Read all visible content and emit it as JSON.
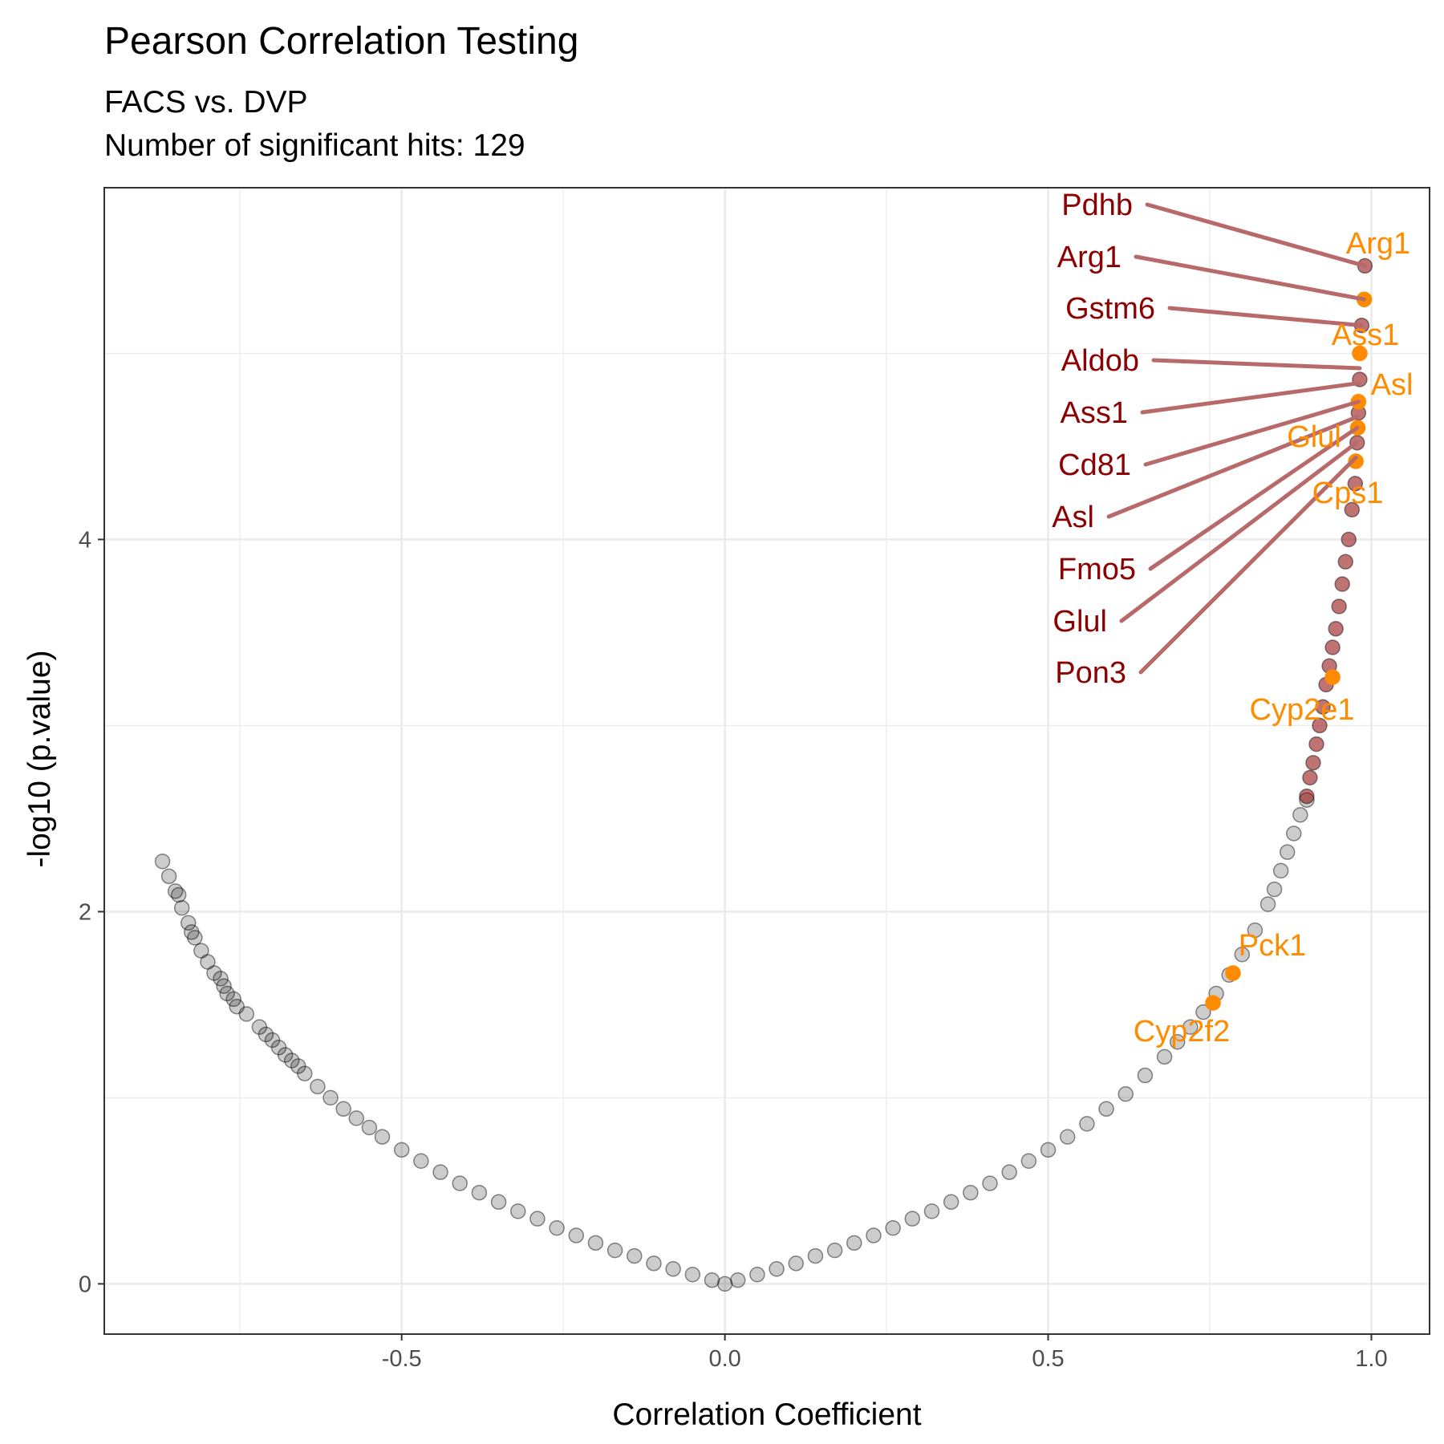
{
  "chart_data": {
    "type": "scatter",
    "title": "Pearson Correlation Testing",
    "subtitle": [
      "FACS vs. DVP",
      "Number of significant hits: 129"
    ],
    "xlabel": "Correlation Coefficient",
    "ylabel": "-log10 (p.value)",
    "xlim": [
      -0.96,
      1.09
    ],
    "ylim": [
      -0.27,
      5.89
    ],
    "xticks": [
      -0.5,
      0.0,
      0.5,
      1.0
    ],
    "xtick_labels": [
      "-0.5",
      "0.0",
      "0.5",
      "1.0"
    ],
    "yticks": [
      0,
      2,
      4
    ],
    "ytick_labels": [
      "0",
      "2",
      "4"
    ],
    "grid": true,
    "legend": "none",
    "series": [
      {
        "role": "non-significant",
        "color": "#000000",
        "points": [
          [
            -0.87,
            2.27
          ],
          [
            -0.86,
            2.19
          ],
          [
            -0.85,
            2.11
          ],
          [
            -0.845,
            2.09
          ],
          [
            -0.84,
            2.02
          ],
          [
            -0.83,
            1.94
          ],
          [
            -0.825,
            1.89
          ],
          [
            -0.82,
            1.86
          ],
          [
            -0.81,
            1.79
          ],
          [
            -0.8,
            1.73
          ],
          [
            -0.79,
            1.67
          ],
          [
            -0.78,
            1.64
          ],
          [
            -0.775,
            1.6
          ],
          [
            -0.77,
            1.56
          ],
          [
            -0.76,
            1.53
          ],
          [
            -0.755,
            1.49
          ],
          [
            -0.74,
            1.45
          ],
          [
            -0.72,
            1.38
          ],
          [
            -0.71,
            1.34
          ],
          [
            -0.7,
            1.31
          ],
          [
            -0.69,
            1.27
          ],
          [
            -0.68,
            1.23
          ],
          [
            -0.67,
            1.2
          ],
          [
            -0.66,
            1.17
          ],
          [
            -0.65,
            1.13
          ],
          [
            -0.63,
            1.06
          ],
          [
            -0.61,
            1.0
          ],
          [
            -0.59,
            0.94
          ],
          [
            -0.57,
            0.89
          ],
          [
            -0.55,
            0.84
          ],
          [
            -0.53,
            0.79
          ],
          [
            -0.5,
            0.72
          ],
          [
            -0.47,
            0.66
          ],
          [
            -0.44,
            0.6
          ],
          [
            -0.41,
            0.54
          ],
          [
            -0.38,
            0.49
          ],
          [
            -0.35,
            0.44
          ],
          [
            -0.32,
            0.39
          ],
          [
            -0.29,
            0.35
          ],
          [
            -0.26,
            0.3
          ],
          [
            -0.23,
            0.26
          ],
          [
            -0.2,
            0.22
          ],
          [
            -0.17,
            0.18
          ],
          [
            -0.14,
            0.15
          ],
          [
            -0.11,
            0.11
          ],
          [
            -0.08,
            0.08
          ],
          [
            -0.05,
            0.05
          ],
          [
            -0.02,
            0.02
          ],
          [
            0.0,
            0.0
          ],
          [
            0.02,
            0.02
          ],
          [
            0.05,
            0.05
          ],
          [
            0.08,
            0.08
          ],
          [
            0.11,
            0.11
          ],
          [
            0.14,
            0.15
          ],
          [
            0.17,
            0.18
          ],
          [
            0.2,
            0.22
          ],
          [
            0.23,
            0.26
          ],
          [
            0.26,
            0.3
          ],
          [
            0.29,
            0.35
          ],
          [
            0.32,
            0.39
          ],
          [
            0.35,
            0.44
          ],
          [
            0.38,
            0.49
          ],
          [
            0.41,
            0.54
          ],
          [
            0.44,
            0.6
          ],
          [
            0.47,
            0.66
          ],
          [
            0.5,
            0.72
          ],
          [
            0.53,
            0.79
          ],
          [
            0.56,
            0.86
          ],
          [
            0.59,
            0.94
          ],
          [
            0.62,
            1.02
          ],
          [
            0.65,
            1.12
          ],
          [
            0.68,
            1.22
          ],
          [
            0.7,
            1.3
          ],
          [
            0.72,
            1.38
          ],
          [
            0.74,
            1.46
          ],
          [
            0.76,
            1.56
          ],
          [
            0.78,
            1.66
          ],
          [
            0.8,
            1.77
          ],
          [
            0.82,
            1.9
          ],
          [
            0.84,
            2.04
          ],
          [
            0.85,
            2.12
          ],
          [
            0.86,
            2.22
          ],
          [
            0.87,
            2.32
          ],
          [
            0.88,
            2.42
          ],
          [
            0.89,
            2.52
          ],
          [
            0.9,
            2.6
          ]
        ]
      },
      {
        "role": "significant",
        "color": "#8b0000",
        "points": [
          [
            0.9,
            2.62
          ],
          [
            0.905,
            2.72
          ],
          [
            0.91,
            2.8
          ],
          [
            0.915,
            2.9
          ],
          [
            0.92,
            3.0
          ],
          [
            0.925,
            3.1
          ],
          [
            0.93,
            3.22
          ],
          [
            0.935,
            3.32
          ],
          [
            0.94,
            3.42
          ],
          [
            0.945,
            3.52
          ],
          [
            0.95,
            3.64
          ],
          [
            0.955,
            3.76
          ],
          [
            0.96,
            3.88
          ],
          [
            0.965,
            4.0
          ],
          [
            0.97,
            4.16
          ],
          [
            0.975,
            4.3
          ],
          [
            0.978,
            4.52
          ],
          [
            0.98,
            4.68
          ],
          [
            0.982,
            4.86
          ],
          [
            0.985,
            5.15
          ],
          [
            0.99,
            5.47
          ]
        ]
      },
      {
        "role": "highlighted",
        "color": "#ff8c00",
        "points": [
          [
            0.989,
            5.29
          ],
          [
            0.982,
            5.0
          ],
          [
            0.98,
            4.74
          ],
          [
            0.979,
            4.6
          ],
          [
            0.976,
            4.42
          ],
          [
            0.94,
            3.26
          ],
          [
            0.786,
            1.67
          ],
          [
            0.755,
            1.51
          ]
        ]
      }
    ],
    "labels_left": [
      "Pdhb",
      "Arg1",
      "Gstm6",
      "Aldob",
      "Ass1",
      "Cd81",
      "Asl",
      "Fmo5",
      "Glul",
      "Pon3"
    ],
    "labels_right": [
      "Arg1",
      "Ass1",
      "Asl",
      "Glul",
      "Cps1",
      "Cyp2e1",
      "Pck1",
      "Cyp2f2"
    ],
    "colors": {
      "significant": "#8b0000",
      "highlighted": "#ff8c00",
      "grid": "#ebebeb",
      "connector": "#b86a6a"
    }
  }
}
